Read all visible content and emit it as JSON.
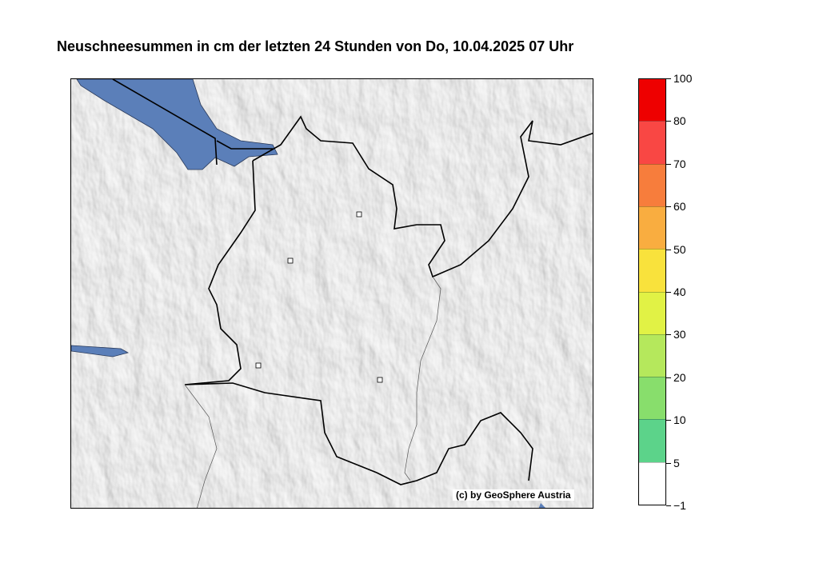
{
  "title": "Neuschneesummen in cm der letzten 24 Stunden von Do, 10.04.2025 07 Uhr",
  "credit": "(c) by GeoSphere Austria",
  "legend": {
    "levels": [
      "−1",
      "5",
      "10",
      "20",
      "30",
      "40",
      "50",
      "60",
      "70",
      "80",
      "100"
    ],
    "colors": [
      "#ffffff",
      "#5cd38a",
      "#88de6c",
      "#b5e85c",
      "#e1f245",
      "#f9e23c",
      "#f9ad40",
      "#f77d3c",
      "#f94744",
      "#ee0000"
    ]
  },
  "colors": {
    "lake": "#5b7fb9",
    "terrain": "#e4e4e4"
  }
}
